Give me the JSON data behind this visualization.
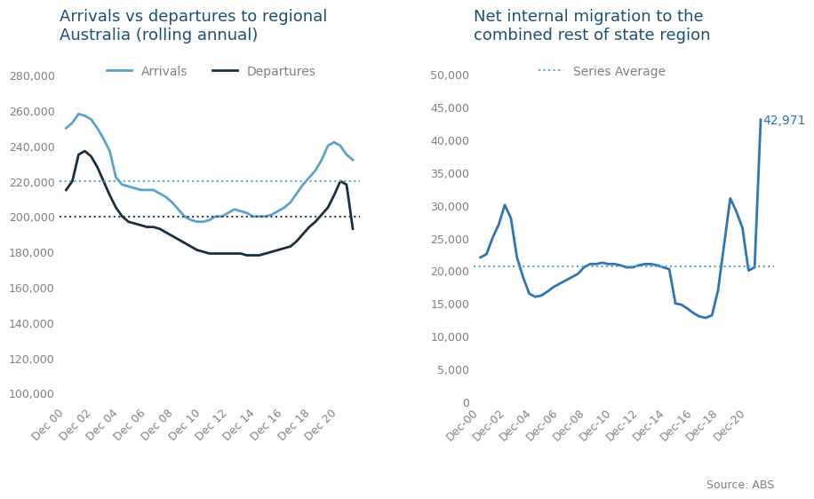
{
  "left_title": "Arrivals vs departures to regional\nAustralia (rolling annual)",
  "right_title": "Net internal migration to the\ncombined rest of state region",
  "source_text": "Source: ABS",
  "title_color": "#1f4e79",
  "line_color_arrivals": "#5ba3c9",
  "line_color_departures": "#1a2e44",
  "line_color_net": "#2e75b6",
  "dotted_color_arrivals": "#5ba3c9",
  "dotted_color_departures": "#2a3f5f",
  "dotted_color_net": "#5ba3c9",
  "annotation_color": "#2e75b6",
  "x_labels_left": [
    "Dec 00",
    "Dec 02",
    "Dec 04",
    "Dec 06",
    "Dec 08",
    "Dec 10",
    "Dec 12",
    "Dec 14",
    "Dec 16",
    "Dec 18",
    "Dec 20"
  ],
  "x_labels_right": [
    "Dec-00",
    "Dec-02",
    "Dec-04",
    "Dec-06",
    "Dec-08",
    "Dec-10",
    "Dec-12",
    "Dec-14",
    "Dec-16",
    "Dec-18",
    "Dec-20"
  ],
  "arrivals": [
    250000,
    253000,
    258000,
    257000,
    255000,
    250000,
    244000,
    237000,
    222000,
    218000,
    217000,
    216000,
    215000,
    215000,
    215000,
    213000,
    211000,
    208000,
    204000,
    200000,
    198000,
    197000,
    197000,
    198000,
    200000,
    200000,
    202000,
    204000,
    203000,
    202000,
    200000,
    200000,
    200000,
    201000,
    203000,
    205000,
    208000,
    213000,
    218000,
    222000,
    226000,
    232000,
    240000,
    242000,
    240000,
    235000,
    232000
  ],
  "departures": [
    215000,
    220000,
    235000,
    237000,
    234000,
    228000,
    220000,
    212000,
    205000,
    200000,
    197000,
    196000,
    195000,
    194000,
    194000,
    193000,
    191000,
    189000,
    187000,
    185000,
    183000,
    181000,
    180000,
    179000,
    179000,
    179000,
    179000,
    179000,
    179000,
    178000,
    178000,
    178000,
    179000,
    180000,
    181000,
    182000,
    183000,
    186000,
    190000,
    194000,
    197000,
    201000,
    205000,
    212000,
    220000,
    218000,
    193000
  ],
  "arrivals_avg": 220000,
  "departures_avg": 200000,
  "left_ylim": [
    95000,
    292000
  ],
  "left_yticks": [
    100000,
    120000,
    140000,
    160000,
    180000,
    200000,
    220000,
    240000,
    260000,
    280000
  ],
  "net_migration": [
    22000,
    22500,
    25000,
    27000,
    30000,
    28000,
    22000,
    19000,
    16500,
    16000,
    16200,
    16800,
    17500,
    18000,
    18500,
    19000,
    19500,
    20500,
    21000,
    21000,
    21200,
    21000,
    21000,
    20800,
    20500,
    20500,
    20800,
    21000,
    21000,
    20800,
    20500,
    20200,
    15000,
    14800,
    14200,
    13500,
    13000,
    12800,
    13200,
    17000,
    24000,
    31000,
    29000,
    26500,
    20000,
    20500,
    42971
  ],
  "net_avg": 20700,
  "right_ylim": [
    0,
    53000
  ],
  "right_yticks": [
    0,
    5000,
    10000,
    15000,
    20000,
    25000,
    30000,
    35000,
    40000,
    45000,
    50000
  ],
  "annotation_value": "42,971",
  "tick_label_color": "#808080",
  "legend_fontsize": 10,
  "title_fontsize": 13,
  "axis_fontsize": 9
}
